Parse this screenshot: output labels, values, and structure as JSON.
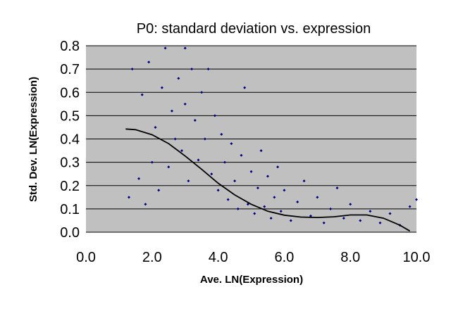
{
  "chart_data": {
    "type": "scatter",
    "title": "P0: standard deviation vs. expression",
    "xlabel": "Ave. LN(Expression)",
    "ylabel": "Std. Dev. LN(Expression)",
    "xlim": [
      0.0,
      10.0
    ],
    "ylim": [
      0.0,
      0.8
    ],
    "x_ticks": [
      "0.0",
      "2.0",
      "4.0",
      "6.0",
      "8.0",
      "10.0"
    ],
    "y_ticks": [
      "0.0",
      "0.1",
      "0.2",
      "0.3",
      "0.4",
      "0.5",
      "0.6",
      "0.7",
      "0.8"
    ],
    "grid": "horizontal",
    "legend": "none",
    "colors": {
      "plot_background": "#c0c0c0",
      "points": "#000080",
      "trend": "#000000",
      "gridlines": "#000000"
    },
    "series": [
      {
        "kind": "points",
        "points": [
          [
            1.3,
            0.15
          ],
          [
            1.4,
            0.7
          ],
          [
            1.6,
            0.23
          ],
          [
            1.7,
            0.59
          ],
          [
            1.8,
            0.12
          ],
          [
            1.9,
            0.73
          ],
          [
            2.0,
            0.3
          ],
          [
            2.1,
            0.45
          ],
          [
            2.2,
            0.18
          ],
          [
            2.3,
            0.62
          ],
          [
            2.4,
            0.79
          ],
          [
            2.5,
            0.28
          ],
          [
            2.6,
            0.52
          ],
          [
            2.7,
            0.4
          ],
          [
            2.8,
            0.66
          ],
          [
            2.9,
            0.35
          ],
          [
            3.0,
            0.79
          ],
          [
            3.0,
            0.55
          ],
          [
            3.1,
            0.22
          ],
          [
            3.2,
            0.7
          ],
          [
            3.3,
            0.48
          ],
          [
            3.4,
            0.31
          ],
          [
            3.5,
            0.6
          ],
          [
            3.6,
            0.4
          ],
          [
            3.7,
            0.7
          ],
          [
            3.8,
            0.25
          ],
          [
            3.9,
            0.5
          ],
          [
            4.0,
            0.18
          ],
          [
            4.1,
            0.42
          ],
          [
            4.2,
            0.3
          ],
          [
            4.3,
            0.14
          ],
          [
            4.4,
            0.38
          ],
          [
            4.5,
            0.22
          ],
          [
            4.6,
            0.1
          ],
          [
            4.7,
            0.33
          ],
          [
            4.8,
            0.62
          ],
          [
            4.9,
            0.12
          ],
          [
            5.0,
            0.26
          ],
          [
            5.1,
            0.08
          ],
          [
            5.2,
            0.19
          ],
          [
            5.3,
            0.35
          ],
          [
            5.4,
            0.11
          ],
          [
            5.5,
            0.24
          ],
          [
            5.6,
            0.06
          ],
          [
            5.7,
            0.15
          ],
          [
            5.8,
            0.28
          ],
          [
            5.9,
            0.09
          ],
          [
            6.0,
            0.18
          ],
          [
            6.2,
            0.05
          ],
          [
            6.4,
            0.13
          ],
          [
            6.6,
            0.22
          ],
          [
            6.8,
            0.07
          ],
          [
            7.0,
            0.15
          ],
          [
            7.2,
            0.04
          ],
          [
            7.4,
            0.1
          ],
          [
            7.6,
            0.19
          ],
          [
            7.8,
            0.06
          ],
          [
            8.0,
            0.12
          ],
          [
            8.3,
            0.05
          ],
          [
            8.6,
            0.09
          ],
          [
            8.9,
            0.04
          ],
          [
            9.2,
            0.08
          ],
          [
            9.5,
            0.03
          ],
          [
            9.8,
            0.11
          ],
          [
            10.0,
            0.14
          ]
        ]
      },
      {
        "kind": "trend",
        "points": [
          [
            1.2,
            0.443
          ],
          [
            1.5,
            0.44
          ],
          [
            2.0,
            0.418
          ],
          [
            2.5,
            0.38
          ],
          [
            3.0,
            0.327
          ],
          [
            3.5,
            0.27
          ],
          [
            4.0,
            0.21
          ],
          [
            4.5,
            0.16
          ],
          [
            5.0,
            0.12
          ],
          [
            5.5,
            0.09
          ],
          [
            6.0,
            0.073
          ],
          [
            6.5,
            0.065
          ],
          [
            7.0,
            0.063
          ],
          [
            7.5,
            0.066
          ],
          [
            8.0,
            0.074
          ],
          [
            8.5,
            0.074
          ],
          [
            9.0,
            0.06
          ],
          [
            9.5,
            0.03
          ],
          [
            9.8,
            0.005
          ]
        ]
      }
    ]
  }
}
